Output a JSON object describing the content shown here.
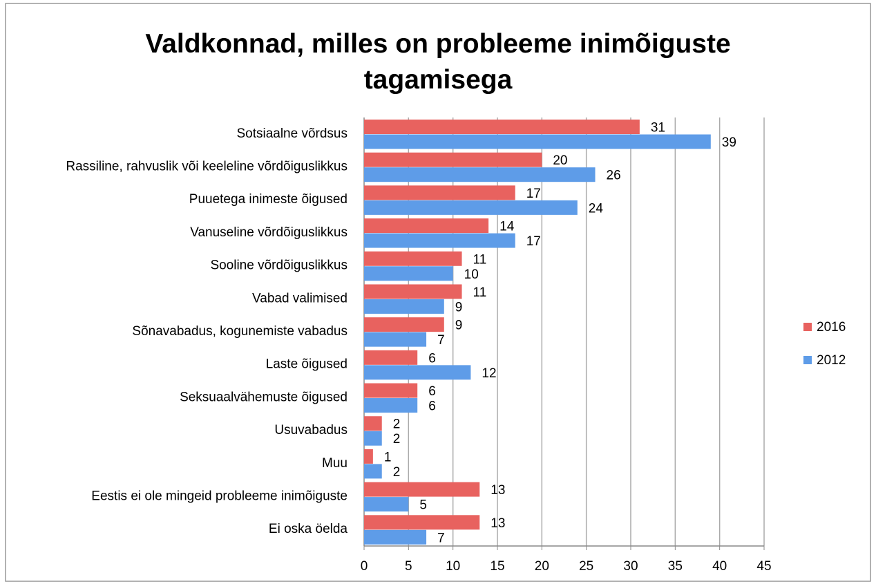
{
  "chart_data": {
    "type": "bar",
    "orientation": "horizontal",
    "title": "Valdkonnad, milles on probleeme inimõiguste tagamisega",
    "categories": [
      "Sotsiaalne võrdsus",
      "Rassiline, rahvuslik või keeleline võrdõiguslikkus",
      "Puuetega inimeste õigused",
      "Vanuseline võrdõiguslikkus",
      "Sooline võrdõiguslikkus",
      "Vabad valimised",
      "Sõnavabadus, kogunemiste vabadus",
      "Laste õigused",
      "Seksuaalvähemuste õigused",
      "Usuvabadus",
      "Muu",
      "Eestis ei ole mingeid probleeme inimõiguste",
      "Ei oska öelda"
    ],
    "series": [
      {
        "name": "2016",
        "color": "#e8625f",
        "values": [
          31,
          20,
          17,
          14,
          11,
          11,
          9,
          6,
          6,
          2,
          1,
          13,
          13
        ]
      },
      {
        "name": "2012",
        "color": "#5e9ce8",
        "values": [
          39,
          26,
          24,
          17,
          10,
          9,
          7,
          12,
          6,
          2,
          2,
          5,
          7
        ]
      }
    ],
    "xlim": [
      0,
      45
    ],
    "xticks": [
      0,
      5,
      10,
      15,
      20,
      25,
      30,
      35,
      40,
      45
    ],
    "grid": true,
    "legend": "right"
  }
}
